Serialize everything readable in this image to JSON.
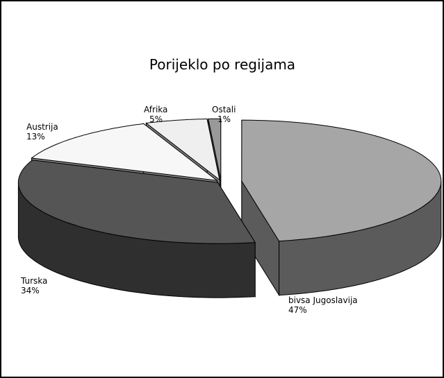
{
  "chart_data": {
    "type": "pie3d",
    "title": "Porijeklo po regijama",
    "categories": [
      "bivsa Jugoslavija",
      "Turska",
      "Austrija",
      "Afrika",
      "Ostali"
    ],
    "values": [
      47,
      34,
      13,
      5,
      1
    ],
    "value_labels": [
      "47%",
      "34%",
      "13%",
      "5%",
      "1%"
    ],
    "colors": [
      "#a6a6a6",
      "#555555",
      "#f7f7f7",
      "#efefef",
      "#999999"
    ]
  }
}
